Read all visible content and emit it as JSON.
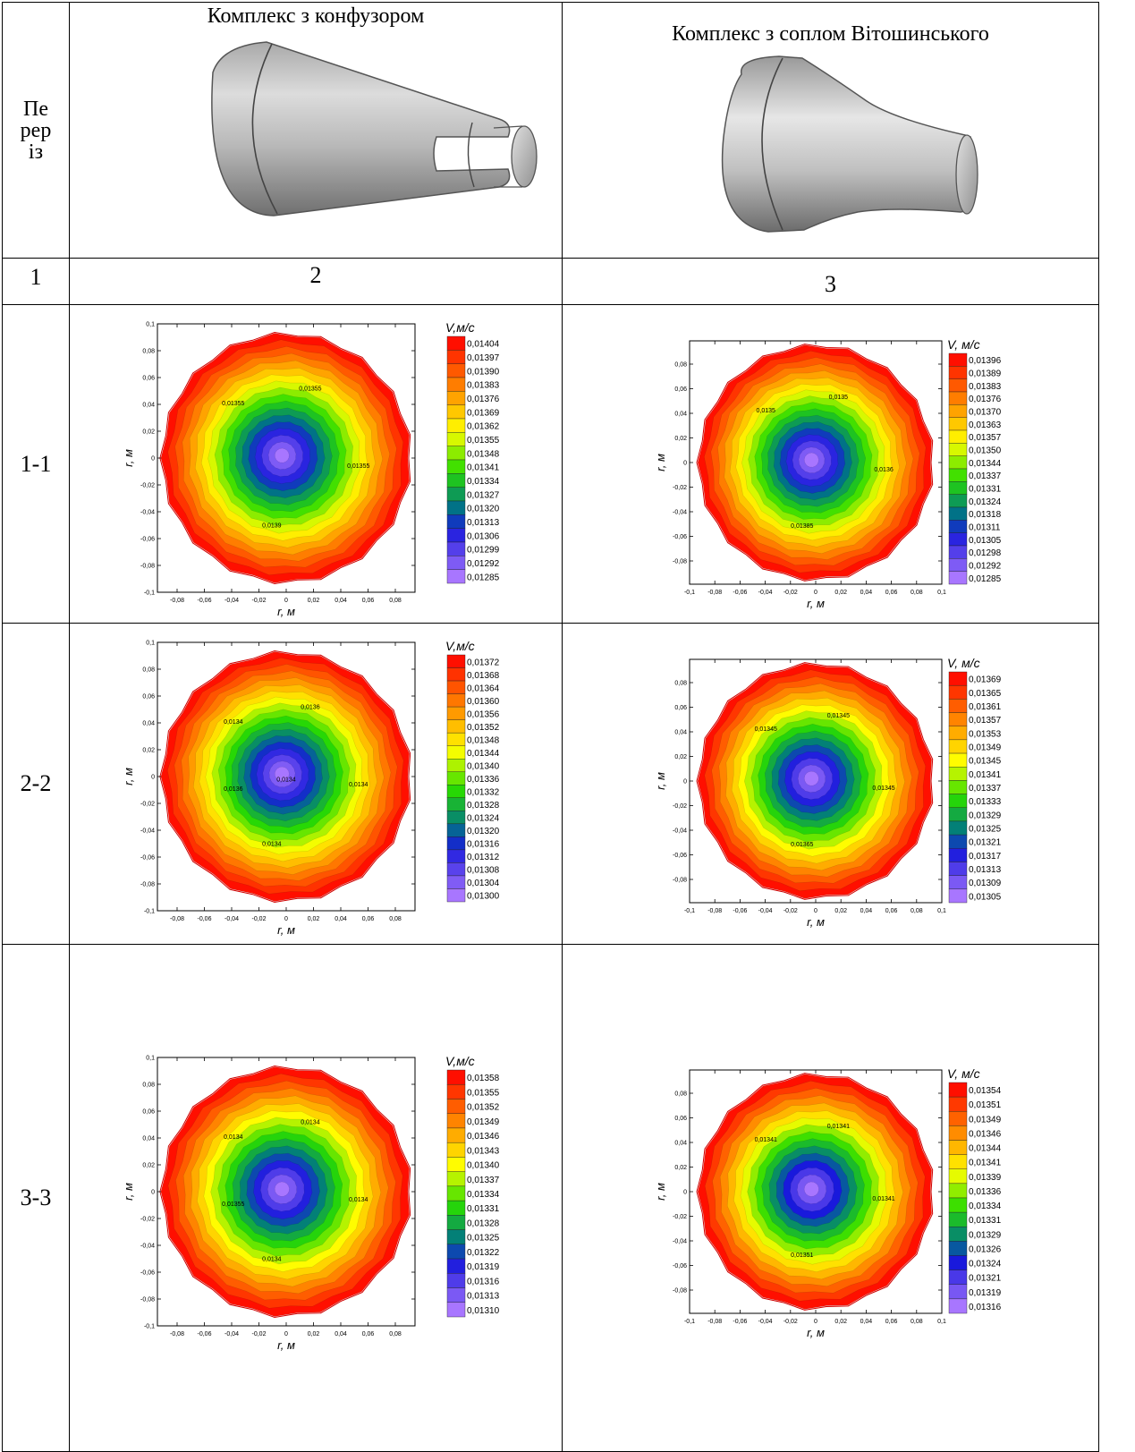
{
  "table": {
    "row_header_label": "Пе\nрер\nіз",
    "col2_title": "Комплекс з конфузором",
    "col3_title": "Комплекс з соплом Вітошинського",
    "col_numbers": [
      "1",
      "2",
      "3"
    ],
    "sections": [
      "1-1",
      "2-2",
      "3-3"
    ]
  },
  "icons": {
    "confuser": "cone-confuser-icon",
    "nozzle": "vitoshinsky-nozzle-icon"
  },
  "chart_data": [
    {
      "type": "heatmap",
      "section": "1-1",
      "variant": "Комплекс з конфузором",
      "xlabel": "r, м",
      "ylabel": "r, м",
      "colorbar_title": "V,м/с",
      "xticks": [
        "-0,08",
        "-0,06",
        "-0,04",
        "-0,02",
        "0",
        "0,02",
        "0,04",
        "0,06",
        "0,08"
      ],
      "yticks": [
        "0,1",
        "0,08",
        "0,06",
        "0,04",
        "0,02",
        "0",
        "-0,02",
        "-0,04",
        "-0,06",
        "-0,08",
        "-0,1"
      ],
      "levels": [
        "0,01404",
        "0,01397",
        "0,01390",
        "0,01383",
        "0,01376",
        "0,01369",
        "0,01362",
        "0,01355",
        "0,01348",
        "0,01341",
        "0,01334",
        "0,01327",
        "0,01320",
        "0,01313",
        "0,01306",
        "0,01299",
        "0,01292",
        "0,01285"
      ],
      "contour_labels": [
        "0,01355",
        "0,01355",
        "0,01355",
        "0,0139"
      ]
    },
    {
      "type": "heatmap",
      "section": "1-1",
      "variant": "Комплекс з соплом Вітошинського",
      "xlabel": "r, м",
      "ylabel": "r, м",
      "colorbar_title": "V, м/с",
      "xticks": [
        "-0,1",
        "-0,08",
        "-0,06",
        "-0,04",
        "-0,02",
        "0",
        "0,02",
        "0,04",
        "0,06",
        "0,08",
        "0,1"
      ],
      "yticks": [
        "0,08",
        "0,06",
        "0,04",
        "0,02",
        "0",
        "-0,02",
        "-0,04",
        "-0,06",
        "-0,08"
      ],
      "levels": [
        "0,01396",
        "0,01389",
        "0,01383",
        "0,01376",
        "0,01370",
        "0,01363",
        "0,01357",
        "0,01350",
        "0,01344",
        "0,01337",
        "0,01331",
        "0,01324",
        "0,01318",
        "0,01311",
        "0,01305",
        "0,01298",
        "0,01292",
        "0,01285"
      ],
      "contour_labels": [
        "0,0135",
        "0,0135",
        "0,0136",
        "0,01385"
      ]
    },
    {
      "type": "heatmap",
      "section": "2-2",
      "variant": "Комплекс з конфузором",
      "xlabel": "r, м",
      "ylabel": "r, м",
      "colorbar_title": "V,м/с",
      "xticks": [
        "-0,08",
        "-0,06",
        "-0,04",
        "-0,02",
        "0",
        "0,02",
        "0,04",
        "0,06",
        "0,08"
      ],
      "yticks": [
        "0,1",
        "0,08",
        "0,06",
        "0,04",
        "0,02",
        "0",
        "-0,02",
        "-0,04",
        "-0,06",
        "-0,08",
        "-0,1"
      ],
      "levels": [
        "0,01372",
        "0,01368",
        "0,01364",
        "0,01360",
        "0,01356",
        "0,01352",
        "0,01348",
        "0,01344",
        "0,01340",
        "0,01336",
        "0,01332",
        "0,01328",
        "0,01324",
        "0,01320",
        "0,01316",
        "0,01312",
        "0,01308",
        "0,01304",
        "0,01300"
      ],
      "contour_labels": [
        "0,0134",
        "0,0136",
        "0,0134",
        "0,0134",
        "0,0136",
        "0,0134"
      ]
    },
    {
      "type": "heatmap",
      "section": "2-2",
      "variant": "Комплекс з соплом Вітошинського",
      "xlabel": "r, м",
      "ylabel": "r, м",
      "colorbar_title": "V, м/с",
      "xticks": [
        "-0,1",
        "-0,08",
        "-0,06",
        "-0,04",
        "-0,02",
        "0",
        "0,02",
        "0,04",
        "0,06",
        "0,08",
        "0,1"
      ],
      "yticks": [
        "0,08",
        "0,06",
        "0,04",
        "0,02",
        "0",
        "-0,02",
        "-0,04",
        "-0,06",
        "-0,08"
      ],
      "levels": [
        "0,01369",
        "0,01365",
        "0,01361",
        "0,01357",
        "0,01353",
        "0,01349",
        "0,01345",
        "0,01341",
        "0,01337",
        "0,01333",
        "0,01329",
        "0,01325",
        "0,01321",
        "0,01317",
        "0,01313",
        "0,01309",
        "0,01305"
      ],
      "contour_labels": [
        "0,01345",
        "0,01345",
        "0,01345",
        "0,01365"
      ]
    },
    {
      "type": "heatmap",
      "section": "3-3",
      "variant": "Комплекс з конфузором",
      "xlabel": "r, м",
      "ylabel": "r, м",
      "colorbar_title": "V,м/с",
      "xticks": [
        "-0,08",
        "-0,06",
        "-0,04",
        "-0,02",
        "0",
        "0,02",
        "0,04",
        "0,06",
        "0,08"
      ],
      "yticks": [
        "0,1",
        "0,08",
        "0,06",
        "0,04",
        "0,02",
        "0",
        "-0,02",
        "-0,04",
        "-0,06",
        "-0,08",
        "-0,1"
      ],
      "levels": [
        "0,01358",
        "0,01355",
        "0,01352",
        "0,01349",
        "0,01346",
        "0,01343",
        "0,01340",
        "0,01337",
        "0,01334",
        "0,01331",
        "0,01328",
        "0,01325",
        "0,01322",
        "0,01319",
        "0,01316",
        "0,01313",
        "0,01310"
      ],
      "contour_labels": [
        "0,0134",
        "0,0134",
        "0,0134",
        "0,0134",
        "0,01355"
      ]
    },
    {
      "type": "heatmap",
      "section": "3-3",
      "variant": "Комплекс з соплом Вітошинського",
      "xlabel": "r, м",
      "ylabel": "r, м",
      "colorbar_title": "V, м/с",
      "xticks": [
        "-0,1",
        "-0,08",
        "-0,06",
        "-0,04",
        "-0,02",
        "0",
        "0,02",
        "0,04",
        "0,06",
        "0,08",
        "0,1"
      ],
      "yticks": [
        "0,08",
        "0,06",
        "0,04",
        "0,02",
        "0",
        "-0,02",
        "-0,04",
        "-0,06",
        "-0,08"
      ],
      "levels": [
        "0,01354",
        "0,01351",
        "0,01349",
        "0,01346",
        "0,01344",
        "0,01341",
        "0,01339",
        "0,01336",
        "0,01334",
        "0,01331",
        "0,01329",
        "0,01326",
        "0,01324",
        "0,01321",
        "0,01319",
        "0,01316"
      ],
      "contour_labels": [
        "0,01341",
        "0,01341",
        "0,01341",
        "0,01351"
      ]
    }
  ]
}
